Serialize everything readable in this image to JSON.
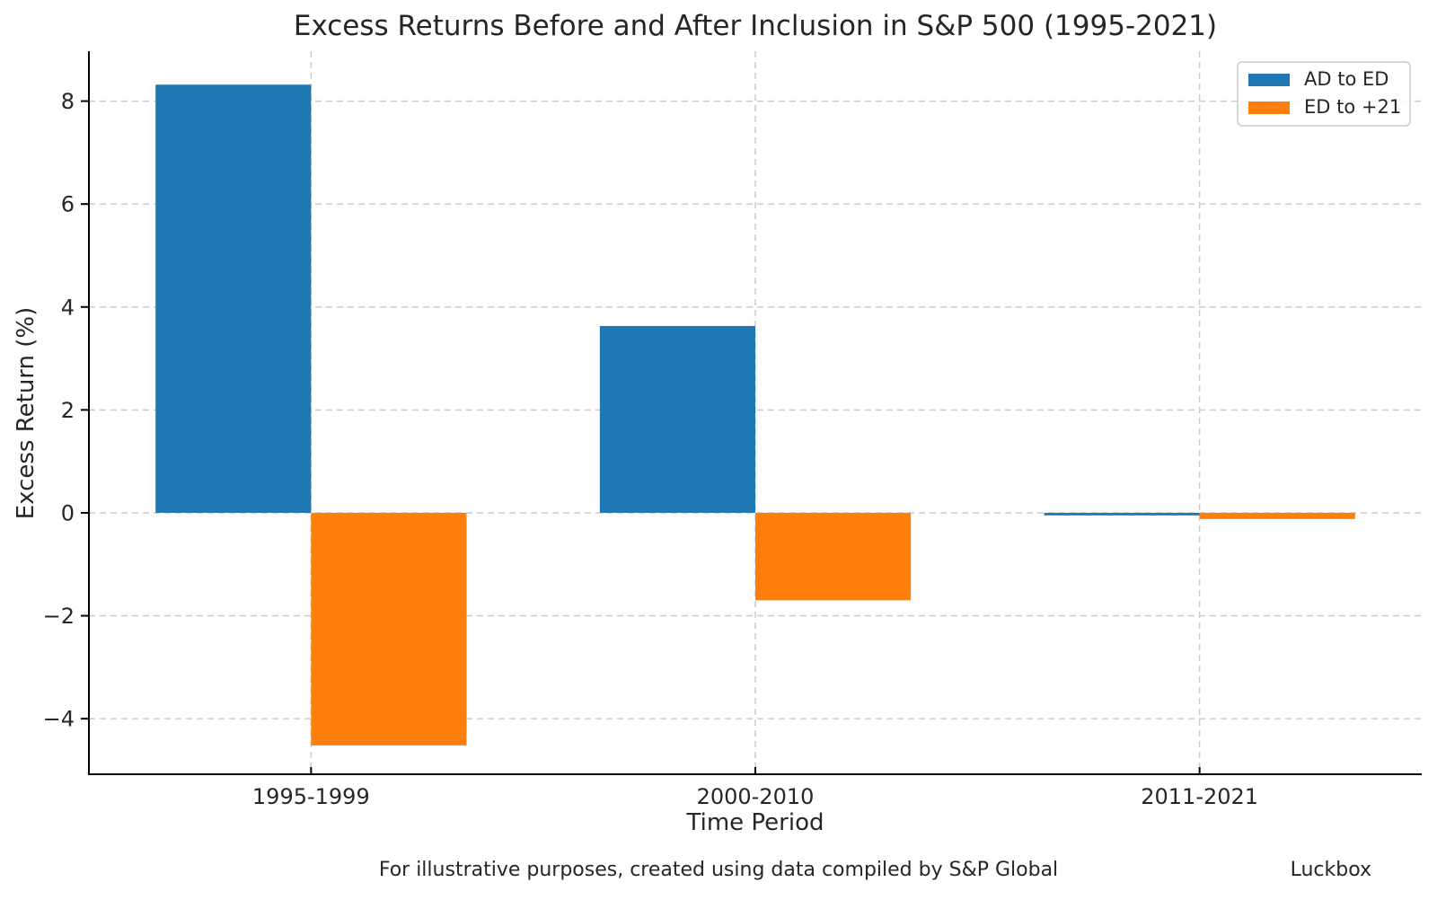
{
  "figure": {
    "footer_note": "For illustrative purposes, created using data compiled by S&P Global",
    "footer_credit": "Luckbox"
  },
  "chart_data": {
    "type": "bar",
    "title": "Excess Returns Before and After Inclusion in S&P 500 (1995-2021)",
    "xlabel": "Time Period",
    "ylabel": "Excess Return (%)",
    "categories": [
      "1995-1999",
      "2000-2010",
      "2011-2021"
    ],
    "series": [
      {
        "name": "AD to ED",
        "color": "#1f77b4",
        "values": [
          8.32,
          3.63,
          -0.05
        ]
      },
      {
        "name": "ED to +21",
        "color": "#ff7f0e",
        "values": [
          -4.52,
          -1.7,
          -0.12
        ]
      }
    ],
    "ylim": [
      -5.08,
      8.97
    ],
    "yticks": [
      -4,
      -2,
      0,
      2,
      4,
      6,
      8
    ],
    "bar_width": 0.35,
    "grid": true,
    "gridline_style": "dashed",
    "legend_position": "upper right",
    "style": {
      "grid_color": "#cccccc",
      "text_color": "#262626",
      "spine_color": "#000000",
      "background": "#ffffff"
    }
  }
}
